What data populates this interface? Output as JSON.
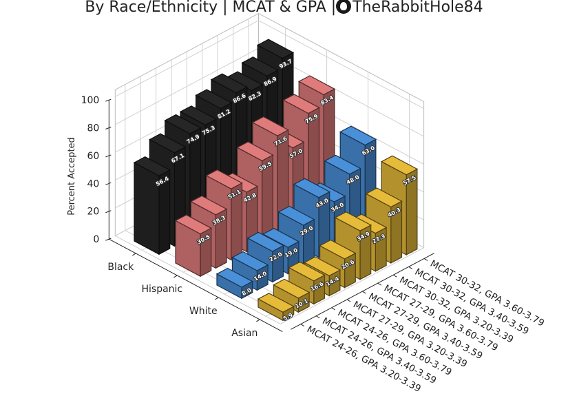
{
  "title": {
    "main": "By Race/Ethnicity | MCAT & GPA |",
    "handle": "TheRabbitHole84",
    "logo_icon": "rabbit-logo-icon"
  },
  "chart_data": {
    "type": "bar",
    "subtype": "3d-bar",
    "title": "By Race/Ethnicity | MCAT & GPA |",
    "zlabel": "Percent Accepted",
    "zlim": [
      0,
      100
    ],
    "zticks": [
      0,
      20,
      40,
      60,
      80,
      100
    ],
    "grid": true,
    "categories": [
      "MCAT 24-26, GPA 3.20-3.39",
      "MCAT 24-26, GPA 3.40-3.59",
      "MCAT 24-26, GPA 3.60-3.79",
      "MCAT 27-29, GPA 3.20-3.39",
      "MCAT 27-29, GPA 3.40-3.59",
      "MCAT 27-29, GPA 3.60-3.79",
      "MCAT 30-32, GPA 3.20-3.39",
      "MCAT 30-32, GPA 3.40-3.59",
      "MCAT 30-32, GPA 3.60-3.79"
    ],
    "series": [
      {
        "name": "Black",
        "color": "#262626",
        "values": [
          56.4,
          67.1,
          74.9,
          75.3,
          81.2,
          86.6,
          82.3,
          86.9,
          93.7
        ]
      },
      {
        "name": "Hispanic",
        "color": "#e07b7b",
        "values": [
          30.5,
          38.3,
          51.1,
          42.8,
          59.5,
          71.6,
          57.0,
          75.9,
          83.4
        ]
      },
      {
        "name": "White",
        "color": "#4a90d9",
        "values": [
          8.0,
          14.0,
          22.0,
          19.0,
          29.0,
          43.0,
          34.0,
          48.0,
          63.0
        ]
      },
      {
        "name": "Asian",
        "color": "#e6bb3a",
        "values": [
          5.9,
          10.1,
          16.6,
          14.4,
          20.6,
          34.9,
          27.3,
          40.3,
          57.5
        ]
      }
    ]
  }
}
